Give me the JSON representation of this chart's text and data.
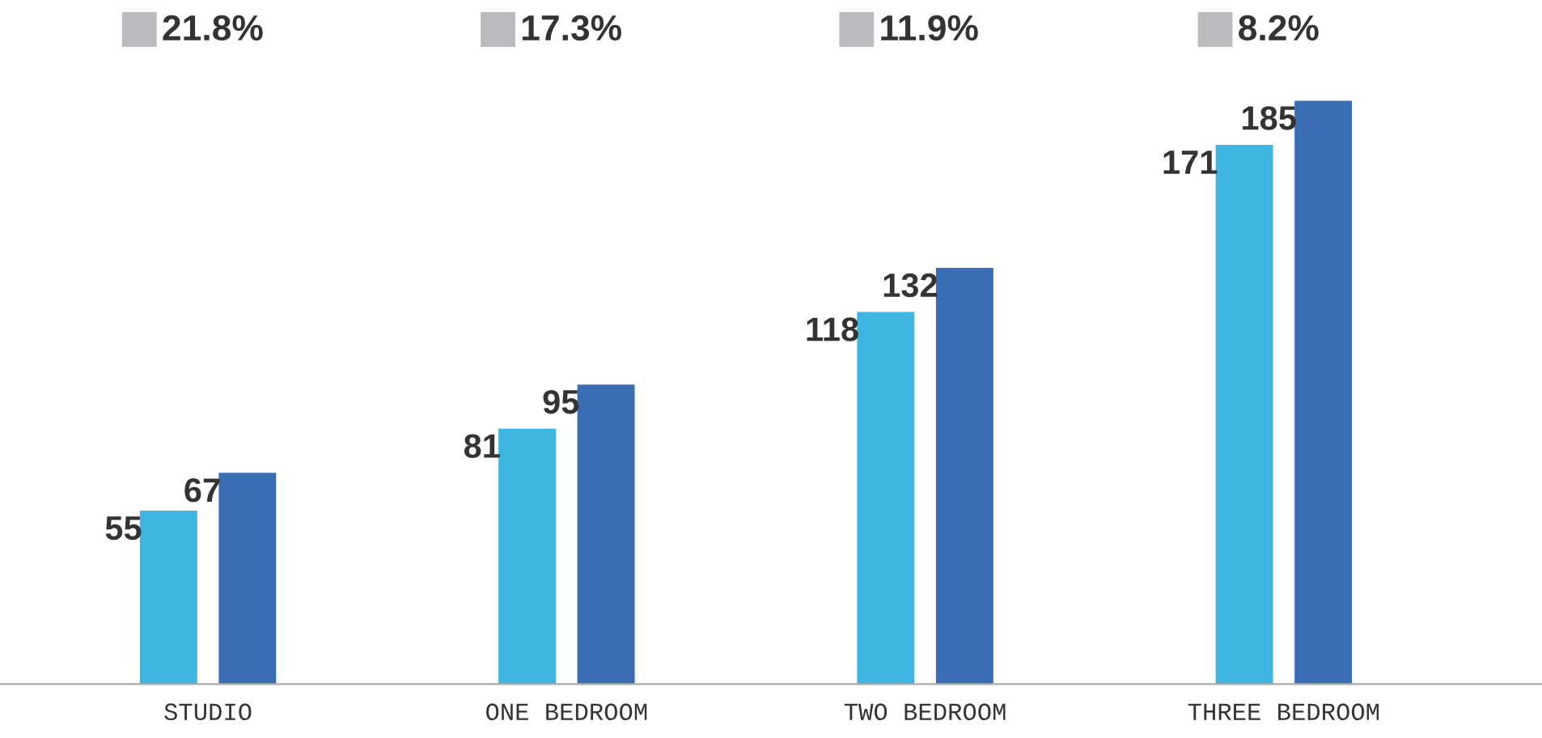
{
  "chart_data": {
    "type": "bar",
    "categories": [
      "STUDIO",
      "ONE BEDROOM",
      "TWO BEDROOM",
      "THREE BEDROOM"
    ],
    "series": [
      {
        "color": "#3fb6e2",
        "values": [
          55,
          81,
          118,
          171
        ]
      },
      {
        "color": "#3b6db4",
        "values": [
          67,
          95,
          132,
          185
        ]
      }
    ],
    "data_labels": true,
    "tick_labels": "x",
    "grid": false,
    "legend": false,
    "annotations": [
      "21.8%",
      "17.3%",
      "11.9%",
      "8.2%"
    ]
  }
}
